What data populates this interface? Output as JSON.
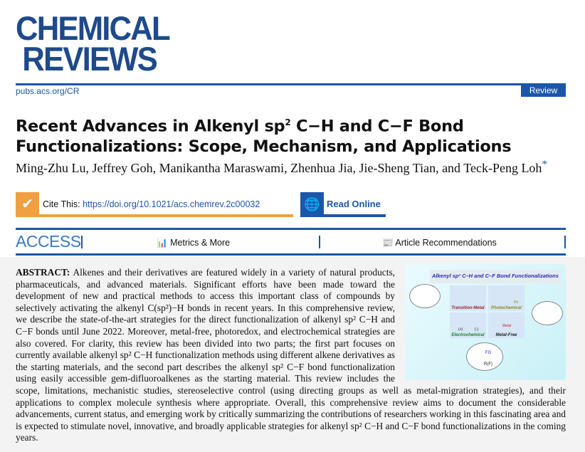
{
  "journal": {
    "name_line1": "CHEMICAL",
    "name_line2": "REVIEWS",
    "site": "pubs.acs.org/CR",
    "type": "Review"
  },
  "title_part1": "Recent Advances in Alkenyl sp",
  "title_sup": "2",
  "title_part2": " C−H and C−F Bond Functionalizations: Scope, Mechanism, and Applications",
  "authors": "Ming-Zhu Lu, Jeffrey Goh, Manikantha Maraswami, Zhenhua Jia, Jie-Sheng Tian, and Teck-Peng Loh",
  "authors_mark": "*",
  "cite": {
    "label": "Cite This:",
    "doi": "https://doi.org/10.1021/acs.chemrev.2c00032"
  },
  "read_online": "Read Online",
  "access": {
    "label": "ACCESS",
    "metrics": "Metrics & More",
    "recommendations": "Article Recommendations"
  },
  "toc": {
    "title": "Alkenyl sp² C–H and C–F Bond Functionalizations",
    "tm": "Transition-Metal Catalysis",
    "photo": "Photochemical",
    "hv": "hν",
    "electro": "Electrochemical",
    "metalfree": "Metal-Free",
    "metal": "Metal",
    "fg": "FG",
    "rf": "R(F)",
    "plus": "(+)",
    "minus": "(-)"
  },
  "abstract": {
    "label": "ABSTRACT:",
    "text": "Alkenes and their derivatives are featured widely in a variety of natural products, pharmaceuticals, and advanced materials. Significant efforts have been made toward the development of new and practical methods to access this important class of compounds by selectively activating the alkenyl C(sp²)−H bonds in recent years. In this comprehensive review, we describe the state-of-the-art strategies for the direct functionalization of alkenyl sp² C−H and C−F bonds until June 2022. Moreover, metal-free, photoredox, and electrochemical strategies are also covered. For clarity, this review has been divided into two parts; the first part focuses on currently available alkenyl sp² C−H functionalization methods using different alkene derivatives as the starting materials, and the second part describes the alkenyl sp² C−F bond functionalization using easily accessible gem-difluoroalkenes as the starting material. This review includes the scope, limitations, mechanistic studies, stereoselective control (using directing groups as well as metal-migration strategies), and their applications to complex molecule synthesis where appropriate. Overall, this comprehensive review aims to document the considerable advancements, current status, and emerging work by critically summarizing the contributions of researchers working in this fascinating area and is expected to stimulate novel, innovative, and broadly applicable strategies for alkenyl sp² C−H and C−F bond functionalizations in the coming years."
  },
  "colors": {
    "brand": "#1c56a8",
    "cite_accent": "#f0a040"
  }
}
